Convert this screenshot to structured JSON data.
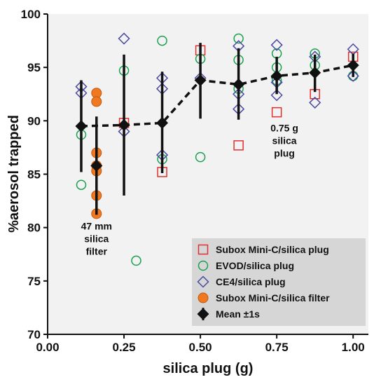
{
  "chart_data": {
    "type": "scatter",
    "xlabel": "silica plug (g)",
    "ylabel": "%aerosol trapped",
    "xlim": [
      0.0,
      1.05
    ],
    "ylim": [
      70,
      100
    ],
    "x_ticks": [
      0.0,
      0.25,
      0.5,
      0.75,
      1.0
    ],
    "x_tick_labels": [
      "0.00",
      "0.25",
      "0.50",
      "0.75",
      "1.00"
    ],
    "y_ticks": [
      70,
      75,
      80,
      85,
      90,
      95,
      100
    ],
    "y_tick_labels": [
      "70",
      "75",
      "80",
      "85",
      "90",
      "95",
      "100"
    ],
    "grid": false,
    "legend_position": "bottom-right",
    "colors": {
      "plot_background": "#f2f2f2",
      "legend_background": "#d6d6d6",
      "subox_plug": "#e03030",
      "evod": "#1aa050",
      "ce4": "#4a4aa0",
      "subox_filter": "#f07820",
      "mean": "#111111"
    },
    "series": [
      {
        "name": "Subox Mini-C/silica plug",
        "marker": "square-open",
        "color_key": "subox_plug",
        "points": [
          [
            0.25,
            89.8
          ],
          [
            0.375,
            85.2
          ],
          [
            0.5,
            96.6
          ],
          [
            0.625,
            87.7
          ],
          [
            0.75,
            90.8
          ],
          [
            0.875,
            92.5
          ],
          [
            1.0,
            96.0
          ]
        ]
      },
      {
        "name": "EVOD/silica plug",
        "marker": "circle-open",
        "color_key": "evod",
        "points": [
          [
            0.11,
            88.7
          ],
          [
            0.11,
            84.0
          ],
          [
            0.25,
            94.7
          ],
          [
            0.29,
            76.9
          ],
          [
            0.375,
            97.5
          ],
          [
            0.375,
            86.4
          ],
          [
            0.5,
            95.8
          ],
          [
            0.5,
            86.6
          ],
          [
            0.625,
            97.7
          ],
          [
            0.625,
            95.7
          ],
          [
            0.625,
            93.0
          ],
          [
            0.75,
            96.3
          ],
          [
            0.75,
            95.0
          ],
          [
            0.75,
            93.8
          ],
          [
            0.875,
            96.3
          ],
          [
            0.875,
            95.2
          ],
          [
            1.0,
            94.2
          ]
        ]
      },
      {
        "name": "CE4/silica plug",
        "marker": "diamond-open",
        "color_key": "ce4",
        "points": [
          [
            0.11,
            93.2
          ],
          [
            0.11,
            92.6
          ],
          [
            0.25,
            97.7
          ],
          [
            0.25,
            89.0
          ],
          [
            0.375,
            94.0
          ],
          [
            0.375,
            93.0
          ],
          [
            0.375,
            86.8
          ],
          [
            0.5,
            94.0
          ],
          [
            0.625,
            97.0
          ],
          [
            0.625,
            92.5
          ],
          [
            0.625,
            91.1
          ],
          [
            0.75,
            97.1
          ],
          [
            0.75,
            93.6
          ],
          [
            0.75,
            92.4
          ],
          [
            0.875,
            96.0
          ],
          [
            0.875,
            91.7
          ],
          [
            1.0,
            96.7
          ],
          [
            1.0,
            94.2
          ]
        ]
      },
      {
        "name": "Subox Mini-C/silica filter",
        "marker": "circle-filled",
        "color_key": "subox_filter",
        "points": [
          [
            0.16,
            92.6
          ],
          [
            0.16,
            91.8
          ],
          [
            0.16,
            87.0
          ],
          [
            0.16,
            85.8
          ],
          [
            0.16,
            85.3
          ],
          [
            0.16,
            83.0
          ],
          [
            0.16,
            81.3
          ]
        ]
      }
    ],
    "mean_series": {
      "name": "Mean ±1s",
      "marker": "diamond-filled",
      "color_key": "mean",
      "line_style": "dashed",
      "points": [
        {
          "x": 0.11,
          "y": 89.5,
          "low": 85.2,
          "high": 93.8
        },
        {
          "x": 0.16,
          "y": 85.8,
          "low": 81.2,
          "high": 90.4
        },
        {
          "x": 0.25,
          "y": 89.6,
          "low": 83.0,
          "high": 96.2
        },
        {
          "x": 0.375,
          "y": 89.8,
          "low": 85.1,
          "high": 94.6
        },
        {
          "x": 0.5,
          "y": 93.8,
          "low": 90.2,
          "high": 97.3
        },
        {
          "x": 0.625,
          "y": 93.4,
          "low": 90.1,
          "high": 96.8
        },
        {
          "x": 0.75,
          "y": 94.2,
          "low": 92.5,
          "high": 96.0
        },
        {
          "x": 0.875,
          "y": 94.5,
          "low": 92.7,
          "high": 96.2
        },
        {
          "x": 1.0,
          "y": 95.2,
          "low": 94.1,
          "high": 96.3
        }
      ],
      "dashed_path_indices": [
        0,
        2,
        3,
        4,
        5,
        6,
        7,
        8
      ]
    },
    "annotations": [
      {
        "lines": [
          "47 mm",
          "silica",
          "filter"
        ],
        "x": 0.16,
        "y": 79.8
      },
      {
        "lines": [
          "0.75 g",
          "silica",
          "plug"
        ],
        "x": 0.775,
        "y": 89.0
      }
    ]
  }
}
